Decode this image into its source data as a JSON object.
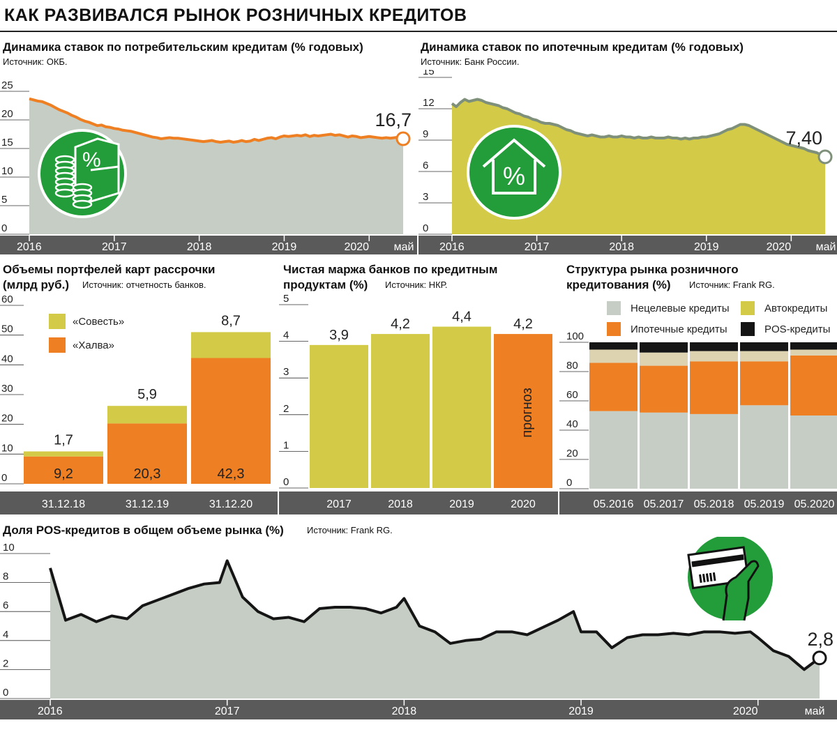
{
  "title": "КАК РАЗВИВАЛСЯ РЫНОК РОЗНИЧНЫХ КРЕДИТОВ",
  "colors": {
    "gray": "#c5cdc5",
    "olive": "#d3cb48",
    "orange": "#ee7f22",
    "green": "#239c3a",
    "axis": "#5a5a5a",
    "black": "#151515",
    "beige": "#ddd3b0",
    "oliveLine": "#7f907a"
  },
  "icons": {
    "consumer": "coins-percent-icon",
    "mortgage": "house-percent-icon",
    "pos": "card-hand-icon"
  },
  "chart_data": [
    {
      "id": "consumer",
      "type": "area",
      "title": "Динамика ставок по потребительским кредитам (% годовых)",
      "source": "Источник: ОКБ.",
      "x_ticks": [
        "2016",
        "2017",
        "2018",
        "2019",
        "2020",
        "май"
      ],
      "y_ticks": [
        "25",
        "20",
        "15",
        "10",
        "5",
        "0"
      ],
      "ylim": [
        0,
        25
      ],
      "x": [
        0,
        0.05,
        0.1,
        0.15,
        0.2,
        0.25,
        0.3,
        0.35,
        0.4,
        0.45,
        0.5,
        0.55,
        0.6,
        0.65,
        0.7,
        0.75,
        0.8,
        0.85,
        0.9,
        0.95,
        1,
        1.05,
        1.1,
        1.15,
        1.2,
        1.25,
        1.3,
        1.35,
        1.4,
        1.45,
        1.5,
        1.55,
        1.6,
        1.65,
        1.7,
        1.75,
        1.8,
        1.85,
        1.9,
        1.95,
        2,
        2.05,
        2.1,
        2.15,
        2.2,
        2.25,
        2.3,
        2.35,
        2.4,
        2.45,
        2.5,
        2.55,
        2.6,
        2.65,
        2.7,
        2.75,
        2.8,
        2.85,
        2.9,
        2.95,
        3,
        3.05,
        3.1,
        3.15,
        3.2,
        3.25,
        3.3,
        3.35,
        3.4,
        3.45,
        3.5,
        3.55,
        3.6,
        3.65,
        3.7,
        3.75,
        3.8,
        3.85,
        3.9,
        3.95,
        4,
        4.05,
        4.1,
        4.15,
        4.2,
        4.25,
        4.3,
        4.35,
        4.4
      ],
      "values": [
        23.7,
        23.5,
        23.3,
        23.2,
        22.9,
        22.6,
        22.2,
        21.8,
        21.5,
        21.2,
        20.8,
        20.5,
        20.1,
        19.8,
        19.6,
        19.3,
        19.0,
        19.1,
        18.8,
        18.7,
        18.5,
        18.4,
        18.2,
        18.1,
        18.0,
        17.8,
        17.6,
        17.4,
        17.2,
        17.0,
        16.9,
        16.7,
        16.8,
        16.9,
        16.8,
        16.8,
        16.7,
        16.6,
        16.5,
        16.4,
        16.3,
        16.2,
        16.3,
        16.4,
        16.2,
        16.1,
        16.2,
        16.3,
        16.1,
        16.2,
        16.4,
        16.2,
        16.3,
        16.6,
        16.4,
        16.6,
        16.8,
        16.9,
        16.7,
        17.0,
        17.2,
        17.1,
        17.2,
        17.3,
        17.2,
        17.4,
        17.1,
        17.3,
        17.2,
        17.3,
        17.4,
        17.5,
        17.3,
        17.4,
        17.2,
        17.0,
        17.2,
        17.1,
        16.9,
        17.0,
        17.1,
        17.0,
        16.9,
        16.8,
        16.9,
        16.8,
        16.9,
        17.0,
        16.7
      ],
      "last_label": "16,7"
    },
    {
      "id": "mortgage",
      "type": "area",
      "title": "Динамика ставок по ипотечным кредитам (% годовых)",
      "source": "Источник: Банк России.",
      "x_ticks": [
        "2016",
        "2017",
        "2018",
        "2019",
        "2020",
        "май"
      ],
      "y_ticks": [
        "15",
        "12",
        "9",
        "6",
        "3",
        "0"
      ],
      "ylim": [
        0,
        15
      ],
      "x": [
        0,
        0.05,
        0.1,
        0.15,
        0.2,
        0.25,
        0.3,
        0.35,
        0.4,
        0.45,
        0.5,
        0.55,
        0.6,
        0.65,
        0.7,
        0.75,
        0.8,
        0.85,
        0.9,
        0.95,
        1,
        1.05,
        1.1,
        1.15,
        1.2,
        1.25,
        1.3,
        1.35,
        1.4,
        1.45,
        1.5,
        1.55,
        1.6,
        1.65,
        1.7,
        1.75,
        1.8,
        1.85,
        1.9,
        1.95,
        2,
        2.05,
        2.1,
        2.15,
        2.2,
        2.25,
        2.3,
        2.35,
        2.4,
        2.45,
        2.5,
        2.55,
        2.6,
        2.65,
        2.7,
        2.75,
        2.8,
        2.85,
        2.9,
        2.95,
        3,
        3.05,
        3.1,
        3.15,
        3.2,
        3.25,
        3.3,
        3.35,
        3.4,
        3.45,
        3.5,
        3.55,
        3.6,
        3.65,
        3.7,
        3.75,
        3.8,
        3.85,
        3.9,
        3.95,
        4,
        4.05,
        4.1,
        4.15,
        4.2,
        4.25,
        4.3,
        4.35,
        4.4
      ],
      "values": [
        12.5,
        12.2,
        12.6,
        12.9,
        12.7,
        12.8,
        12.9,
        12.8,
        12.6,
        12.5,
        12.4,
        12.3,
        12.1,
        12.0,
        11.8,
        11.6,
        11.5,
        11.3,
        11.2,
        11.0,
        10.9,
        10.7,
        10.6,
        10.6,
        10.5,
        10.4,
        10.2,
        10.0,
        9.9,
        9.7,
        9.6,
        9.5,
        9.4,
        9.5,
        9.4,
        9.3,
        9.3,
        9.4,
        9.3,
        9.3,
        9.4,
        9.3,
        9.3,
        9.2,
        9.3,
        9.2,
        9.2,
        9.3,
        9.2,
        9.2,
        9.2,
        9.3,
        9.2,
        9.2,
        9.1,
        9.2,
        9.1,
        9.2,
        9.2,
        9.3,
        9.3,
        9.4,
        9.5,
        9.6,
        9.8,
        10.0,
        10.1,
        10.3,
        10.5,
        10.5,
        10.4,
        10.2,
        10.0,
        9.8,
        9.6,
        9.4,
        9.2,
        9.0,
        8.8,
        8.6,
        8.5,
        8.4,
        8.3,
        8.2,
        8.0,
        7.9,
        7.8,
        7.6,
        7.4
      ],
      "last_label": "7,40"
    },
    {
      "id": "cards",
      "type": "bar",
      "title": "Объемы портфелей карт рассрочки",
      "title2": "(млрд руб.)",
      "source": "Источник: отчетность банков.",
      "categories": [
        "31.12.18",
        "31.12.19",
        "31.12.20"
      ],
      "y_ticks": [
        "60",
        "50",
        "40",
        "30",
        "20",
        "10",
        "0"
      ],
      "ylim": [
        0,
        60
      ],
      "series": [
        {
          "name": "«Халва»",
          "values": [
            9.2,
            20.3,
            42.3
          ],
          "labels": [
            "9,2",
            "20,3",
            "42,3"
          ]
        },
        {
          "name": "«Совесть»",
          "values": [
            1.7,
            5.9,
            8.7
          ],
          "labels": [
            "1,7",
            "5,9",
            "8,7"
          ]
        }
      ]
    },
    {
      "id": "margin",
      "type": "bar",
      "title": "Чистая маржа банков по кредитным",
      "title2": "продуктам (%)",
      "source": "Источник: НКР.",
      "categories": [
        "2017",
        "2018",
        "2019",
        "2020"
      ],
      "y_ticks": [
        "5",
        "4",
        "3",
        "2",
        "1",
        "0"
      ],
      "ylim": [
        0,
        5
      ],
      "values": [
        3.9,
        4.2,
        4.4,
        4.2
      ],
      "labels": [
        "3,9",
        "4,2",
        "4,4",
        "4,2"
      ],
      "forecast_label": "прогноз"
    },
    {
      "id": "structure",
      "type": "bar",
      "title": "Структура рынка розничного",
      "title2": "кредитования (%)",
      "source": "Источник: Frank RG.",
      "categories": [
        "05.2016",
        "05.2017",
        "05.2018",
        "05.2019",
        "05.2020"
      ],
      "y_ticks": [
        "100",
        "80",
        "60",
        "40",
        "20",
        "0"
      ],
      "ylim": [
        0,
        100
      ],
      "series": [
        {
          "name": "Нецелевые кредиты",
          "values": [
            53,
            52,
            51,
            57,
            50
          ]
        },
        {
          "name": "Ипотечные кредиты",
          "values": [
            33,
            32,
            36,
            30,
            41
          ]
        },
        {
          "name": "Автокредиты",
          "values": [
            9,
            9,
            7,
            7,
            4
          ]
        },
        {
          "name": "POS-кредиты",
          "values": [
            5,
            7,
            6,
            6,
            5
          ]
        }
      ]
    },
    {
      "id": "pos",
      "type": "area",
      "title": "Доля POS-кредитов в общем объеме рынка (%)",
      "source": "Источник: Frank RG.",
      "x_ticks": [
        "2016",
        "2017",
        "2018",
        "2019",
        "2020",
        "май"
      ],
      "y_ticks": [
        "10",
        "8",
        "6",
        "4",
        "2",
        "0"
      ],
      "ylim": [
        0,
        10
      ],
      "x": [
        0,
        0.087,
        0.174,
        0.261,
        0.348,
        0.435,
        0.522,
        0.609,
        0.696,
        0.783,
        0.87,
        0.957,
        1,
        1.087,
        1.174,
        1.261,
        1.348,
        1.435,
        1.522,
        1.609,
        1.696,
        1.783,
        1.87,
        1.957,
        2,
        2.087,
        2.174,
        2.261,
        2.348,
        2.435,
        2.522,
        2.609,
        2.696,
        2.783,
        2.87,
        2.957,
        3,
        3.087,
        3.174,
        3.261,
        3.348,
        3.435,
        3.522,
        3.609,
        3.696,
        3.783,
        3.87,
        3.957,
        4,
        4.087,
        4.174,
        4.261,
        4.348
      ],
      "values": [
        9.0,
        5.4,
        5.8,
        5.3,
        5.7,
        5.5,
        6.4,
        6.8,
        7.2,
        7.6,
        7.9,
        8.0,
        9.5,
        7.0,
        6.0,
        5.5,
        5.6,
        5.3,
        6.2,
        6.3,
        6.3,
        6.2,
        5.9,
        6.3,
        6.9,
        5.0,
        4.6,
        3.8,
        4.0,
        4.1,
        4.6,
        4.6,
        4.4,
        4.9,
        5.4,
        6.0,
        4.6,
        4.6,
        3.5,
        4.2,
        4.4,
        4.4,
        4.5,
        4.4,
        4.6,
        4.6,
        4.5,
        4.6,
        4.2,
        3.3,
        2.9,
        2.0,
        2.8
      ],
      "last_label": "2,8"
    }
  ]
}
